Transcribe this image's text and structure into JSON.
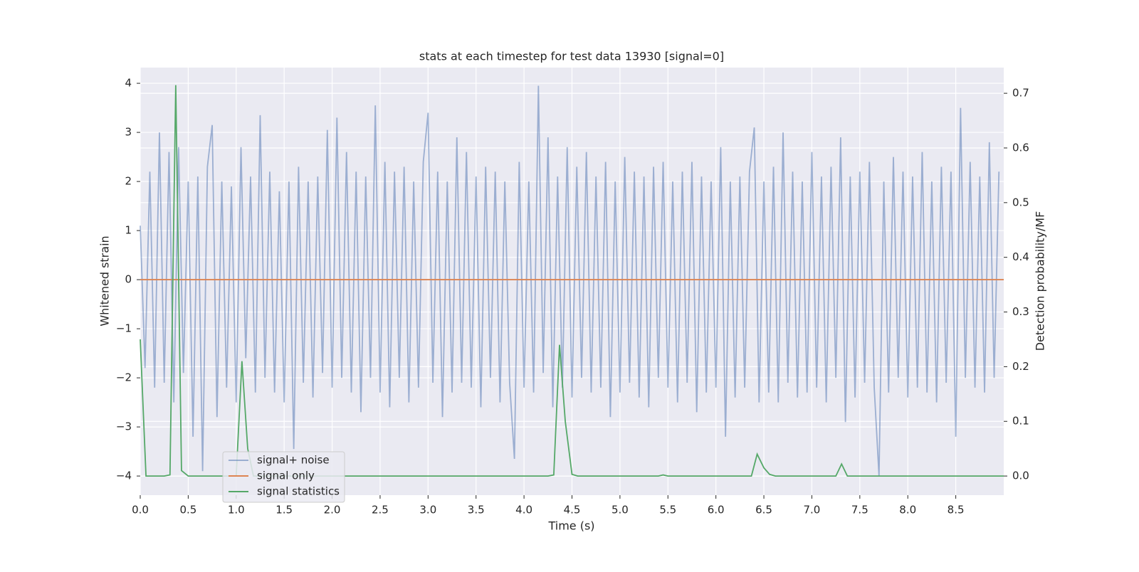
{
  "chart_data": {
    "type": "line",
    "title": "stats at each timestep for test data 13930 [signal=0]",
    "xlabel": "Time (s)",
    "ylabel": "Whitened strain",
    "y2label": "Detection probability/MF",
    "xlim": [
      0,
      9.0
    ],
    "xticks": [
      {
        "value": 0,
        "label": "0.0"
      },
      0.5,
      {
        "value": 1,
        "label": "1.0"
      },
      1.5,
      {
        "value": 2,
        "label": "2.0"
      },
      2.5,
      {
        "value": 3,
        "label": "3.0"
      },
      3.5,
      {
        "value": 4,
        "label": "4.0"
      },
      4.5,
      {
        "value": 5,
        "label": "5.0"
      },
      5.5,
      {
        "value": 6,
        "label": "6.0"
      },
      6.5,
      {
        "value": 7,
        "label": "7.0"
      },
      7.5,
      {
        "value": 8,
        "label": "8.0"
      },
      8.5
    ],
    "ylim": [
      -4.39,
      4.32
    ],
    "yticks": [
      {
        "value": -4,
        "label": "−4"
      },
      {
        "value": -3,
        "label": "−3"
      },
      {
        "value": -2,
        "label": "−2"
      },
      {
        "value": -1,
        "label": "−1"
      },
      0,
      1,
      2,
      3,
      4
    ],
    "y2lim": [
      -0.035,
      0.747
    ],
    "y2ticks": [
      {
        "value": 0,
        "label": "0.0"
      },
      0.1,
      0.2,
      0.3,
      0.4,
      0.5,
      0.6,
      0.7
    ],
    "grid": true,
    "legend": "lower left",
    "series": [
      {
        "name": "signal+ noise",
        "color": "#4c72b0",
        "opacity": 0.5,
        "x": [
          0,
          0.05,
          0.1,
          0.15,
          0.2,
          0.25,
          0.3,
          0.35,
          0.4,
          0.45,
          0.5,
          0.55,
          0.6,
          0.65,
          0.7,
          0.75,
          0.8,
          0.85,
          0.9,
          0.95,
          1,
          1.05,
          1.1,
          1.15,
          1.2,
          1.25,
          1.3,
          1.35,
          1.4,
          1.45,
          1.5,
          1.55,
          1.6,
          1.65,
          1.7,
          1.75,
          1.8,
          1.85,
          1.9,
          1.95,
          2,
          2.05,
          2.1,
          2.15,
          2.2,
          2.25,
          2.3,
          2.35,
          2.4,
          2.45,
          2.5,
          2.55,
          2.6,
          2.65,
          2.7,
          2.75,
          2.8,
          2.85,
          2.9,
          2.95,
          3,
          3.05,
          3.1,
          3.15,
          3.2,
          3.25,
          3.3,
          3.35,
          3.4,
          3.45,
          3.5,
          3.55,
          3.6,
          3.65,
          3.7,
          3.75,
          3.8,
          3.85,
          3.9,
          3.95,
          4,
          4.05,
          4.1,
          4.15,
          4.2,
          4.25,
          4.3,
          4.35,
          4.4,
          4.45,
          4.5,
          4.55,
          4.6,
          4.65,
          4.7,
          4.75,
          4.8,
          4.85,
          4.9,
          4.95,
          5,
          5.05,
          5.1,
          5.15,
          5.2,
          5.25,
          5.3,
          5.35,
          5.4,
          5.45,
          5.5,
          5.55,
          5.6,
          5.65,
          5.7,
          5.75,
          5.8,
          5.85,
          5.9,
          5.95,
          6,
          6.05,
          6.1,
          6.15,
          6.2,
          6.25,
          6.3,
          6.35,
          6.4,
          6.45,
          6.5,
          6.55,
          6.6,
          6.65,
          6.7,
          6.75,
          6.8,
          6.85,
          6.9,
          6.95,
          7,
          7.05,
          7.1,
          7.15,
          7.2,
          7.25,
          7.3,
          7.35,
          7.4,
          7.45,
          7.5,
          7.55,
          7.6,
          7.65,
          7.7,
          7.75,
          7.8,
          7.85,
          7.9,
          7.95,
          8,
          8.05,
          8.1,
          8.15,
          8.2,
          8.25,
          8.3,
          8.35,
          8.4,
          8.45,
          8.5,
          8.55,
          8.6,
          8.65,
          8.7,
          8.75,
          8.8,
          8.85,
          8.9,
          8.95
        ],
        "values": [
          1.1,
          -1.8,
          2.2,
          -2.2,
          3.0,
          -2.1,
          2.6,
          -2.5,
          2.7,
          -1.9,
          2.0,
          -3.2,
          2.1,
          -3.9,
          2.3,
          3.15,
          -2.8,
          2.0,
          -2.2,
          1.9,
          -2.5,
          2.7,
          -1.6,
          2.1,
          -2.3,
          3.35,
          -2.0,
          2.2,
          -2.3,
          1.8,
          -2.5,
          2.0,
          -3.45,
          2.3,
          -2.1,
          2.0,
          -2.4,
          2.1,
          -1.9,
          3.05,
          -2.2,
          3.3,
          -2.0,
          2.6,
          -2.3,
          2.2,
          -2.7,
          2.1,
          -2.0,
          3.55,
          -2.3,
          2.4,
          -2.6,
          2.2,
          -2.0,
          2.3,
          -2.5,
          2.0,
          -2.2,
          2.4,
          3.4,
          -2.1,
          2.2,
          -2.8,
          2.0,
          -2.3,
          2.9,
          -2.1,
          2.6,
          -2.2,
          2.1,
          -2.6,
          2.3,
          -2.0,
          2.2,
          -2.5,
          2.0,
          -2.1,
          -3.65,
          2.4,
          -2.2,
          2.0,
          -2.3,
          3.95,
          -1.9,
          2.9,
          -2.6,
          2.1,
          -2.2,
          2.7,
          -2.4,
          2.3,
          -2.0,
          2.6,
          -2.3,
          2.1,
          -2.2,
          2.4,
          -2.8,
          2.0,
          -2.3,
          2.5,
          -2.1,
          2.2,
          -2.4,
          2.1,
          -2.6,
          2.3,
          -2.0,
          2.4,
          -2.2,
          2.0,
          -2.5,
          2.2,
          -2.1,
          2.4,
          -2.7,
          2.1,
          -2.3,
          2.0,
          -2.2,
          2.7,
          -3.2,
          2.0,
          -2.4,
          2.1,
          -2.2,
          2.2,
          3.1,
          -2.5,
          2.0,
          -2.3,
          2.3,
          -2.5,
          3.0,
          -2.1,
          2.2,
          -2.4,
          2.0,
          -2.3,
          2.6,
          -2.2,
          2.1,
          -2.5,
          2.3,
          -2.0,
          2.9,
          -2.9,
          2.1,
          -2.4,
          2.2,
          -2.1,
          2.4,
          -2.2,
          -4.0,
          2.0,
          -2.3,
          2.5,
          -2.0,
          2.2,
          -2.4,
          2.1,
          -2.2,
          2.6,
          -2.3,
          2.0,
          -2.5,
          2.3,
          -2.1,
          2.2,
          -3.2,
          3.5,
          -2.0,
          2.4,
          -2.2,
          2.1,
          -2.3,
          2.8,
          -2.0,
          2.2
        ]
      },
      {
        "name": "signal only",
        "color": "#dd8452",
        "x": [
          0,
          9.0
        ],
        "values": [
          0,
          0
        ]
      },
      {
        "name": "signal statistics",
        "color": "#55a868",
        "axis": "y2",
        "x": [
          0,
          0.06,
          0.25,
          0.31,
          0.37,
          0.43,
          0.5,
          1.0,
          1.06,
          1.12,
          1.18,
          4.25,
          4.31,
          4.37,
          4.43,
          4.5,
          4.56,
          5.4,
          5.45,
          5.5,
          6.37,
          6.43,
          6.5,
          6.56,
          6.62,
          7.25,
          7.31,
          7.37,
          9.0
        ],
        "values": [
          0.25,
          0.0,
          0.0,
          0.002,
          0.715,
          0.01,
          0.0,
          0.0,
          0.21,
          0.05,
          0.0,
          0.0,
          0.002,
          0.24,
          0.1,
          0.003,
          0.0,
          0.0,
          0.002,
          0.0,
          0.0,
          0.04,
          0.015,
          0.003,
          0.0,
          0.0,
          0.022,
          0.0,
          0.0
        ]
      }
    ]
  }
}
